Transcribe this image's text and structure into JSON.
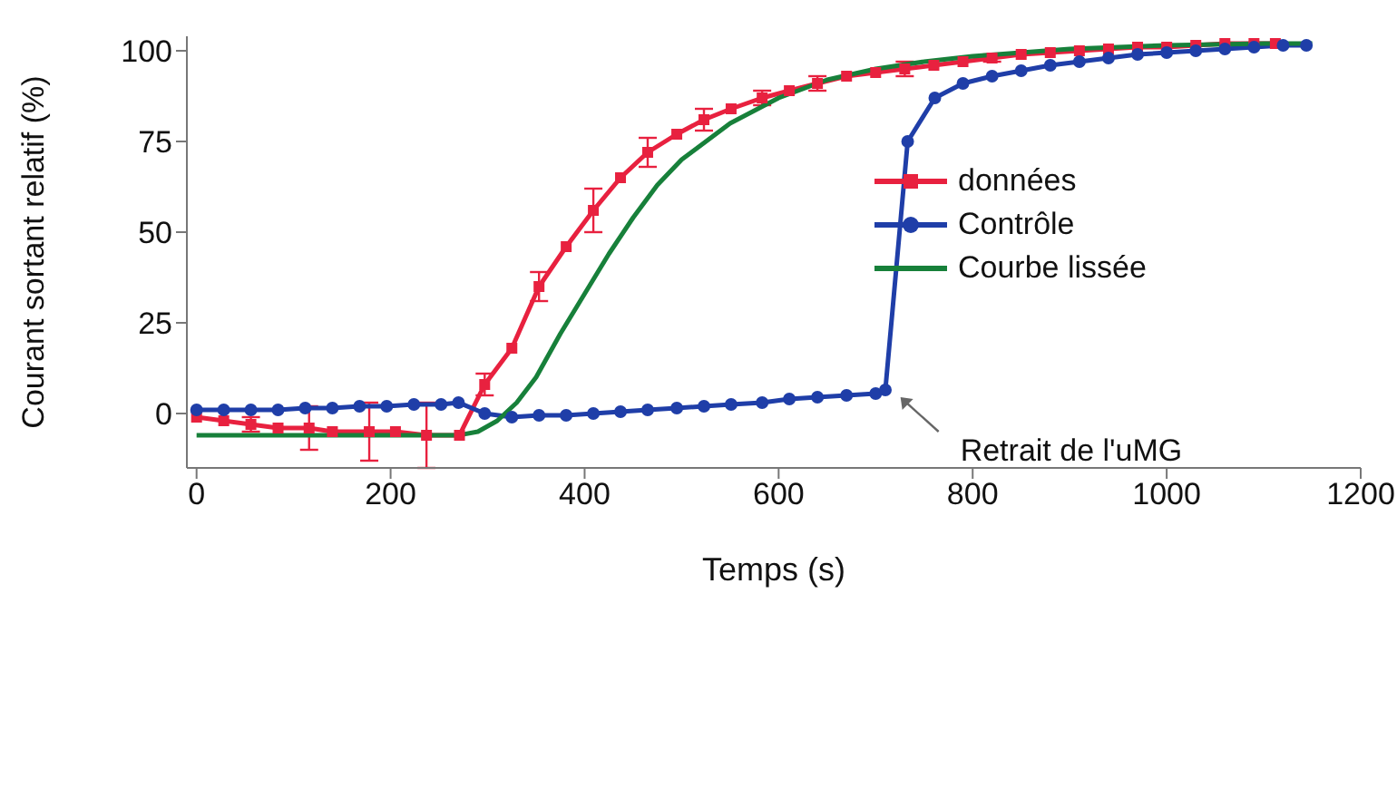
{
  "chart_data": {
    "type": "line",
    "xlabel": "Temps (s)",
    "ylabel": "Courant sortant relatif (%)",
    "xlim": [
      -10,
      1200
    ],
    "xticks": [
      0,
      200,
      400,
      600,
      800,
      1000,
      1200
    ],
    "ylim": [
      -15,
      104
    ],
    "yticks": [
      0,
      25,
      50,
      75,
      100
    ],
    "grid": false,
    "legend": "right",
    "series": [
      {
        "name": "données",
        "color": "#e8213f",
        "marker": "square",
        "x": [
          0,
          28,
          56,
          84,
          116,
          140,
          178,
          205,
          237,
          271,
          297,
          325,
          353,
          381,
          409,
          437,
          465,
          495,
          523,
          551,
          583,
          611,
          640,
          670,
          700,
          730,
          760,
          790,
          820,
          850,
          880,
          910,
          940,
          970,
          1000,
          1030,
          1060,
          1090,
          1112
        ],
        "values": [
          -1,
          -2,
          -3,
          -4,
          -4,
          -5,
          -5,
          -5,
          -6,
          -6,
          8,
          18,
          35,
          46,
          56,
          65,
          72,
          77,
          81,
          84,
          87,
          89,
          91,
          93,
          94,
          95,
          96,
          97,
          98,
          99,
          99.5,
          100,
          100.5,
          101,
          101,
          101.5,
          102,
          102,
          102
        ],
        "errors": [
          null,
          null,
          2,
          null,
          6,
          null,
          8,
          null,
          9,
          null,
          3,
          null,
          4,
          null,
          6,
          null,
          4,
          null,
          3,
          null,
          2,
          null,
          2,
          null,
          null,
          2,
          null,
          null,
          1,
          null,
          null,
          null,
          null,
          null,
          null,
          null,
          null,
          null,
          null
        ]
      },
      {
        "name": "Contrôle",
        "color": "#1f3ea8",
        "marker": "circle",
        "x": [
          0,
          28,
          56,
          84,
          112,
          140,
          168,
          196,
          224,
          252,
          270,
          297,
          325,
          353,
          381,
          409,
          437,
          465,
          495,
          523,
          551,
          583,
          611,
          640,
          670,
          700,
          710,
          733,
          761,
          790,
          820,
          850,
          880,
          910,
          940,
          970,
          1000,
          1030,
          1060,
          1090,
          1120,
          1144
        ],
        "values": [
          1,
          1,
          1,
          1,
          1.5,
          1.5,
          2,
          2,
          2.5,
          2.5,
          3,
          0,
          -1,
          -0.5,
          -0.5,
          0,
          0.5,
          1,
          1.5,
          2,
          2.5,
          3,
          4,
          4.5,
          5,
          5.5,
          6.5,
          75,
          87,
          91,
          93,
          94.5,
          96,
          97,
          98,
          99,
          99.5,
          100,
          100.5,
          101,
          101.5,
          101.5
        ]
      },
      {
        "name": "Courbe lissée",
        "color": "#17803a",
        "marker": "none",
        "x": [
          0,
          100,
          200,
          270,
          290,
          310,
          330,
          350,
          375,
          400,
          425,
          450,
          475,
          500,
          550,
          600,
          650,
          700,
          750,
          800,
          900,
          1000,
          1100,
          1150
        ],
        "values": [
          -6,
          -6,
          -6,
          -6,
          -5,
          -2,
          3,
          10,
          22,
          33,
          44,
          54,
          63,
          70,
          80,
          87,
          92,
          95,
          97,
          98.5,
          100.5,
          101.5,
          102,
          102
        ]
      }
    ],
    "annotations": [
      {
        "text": "Retrait de l'uMG",
        "x": 720,
        "y": 6
      }
    ]
  }
}
